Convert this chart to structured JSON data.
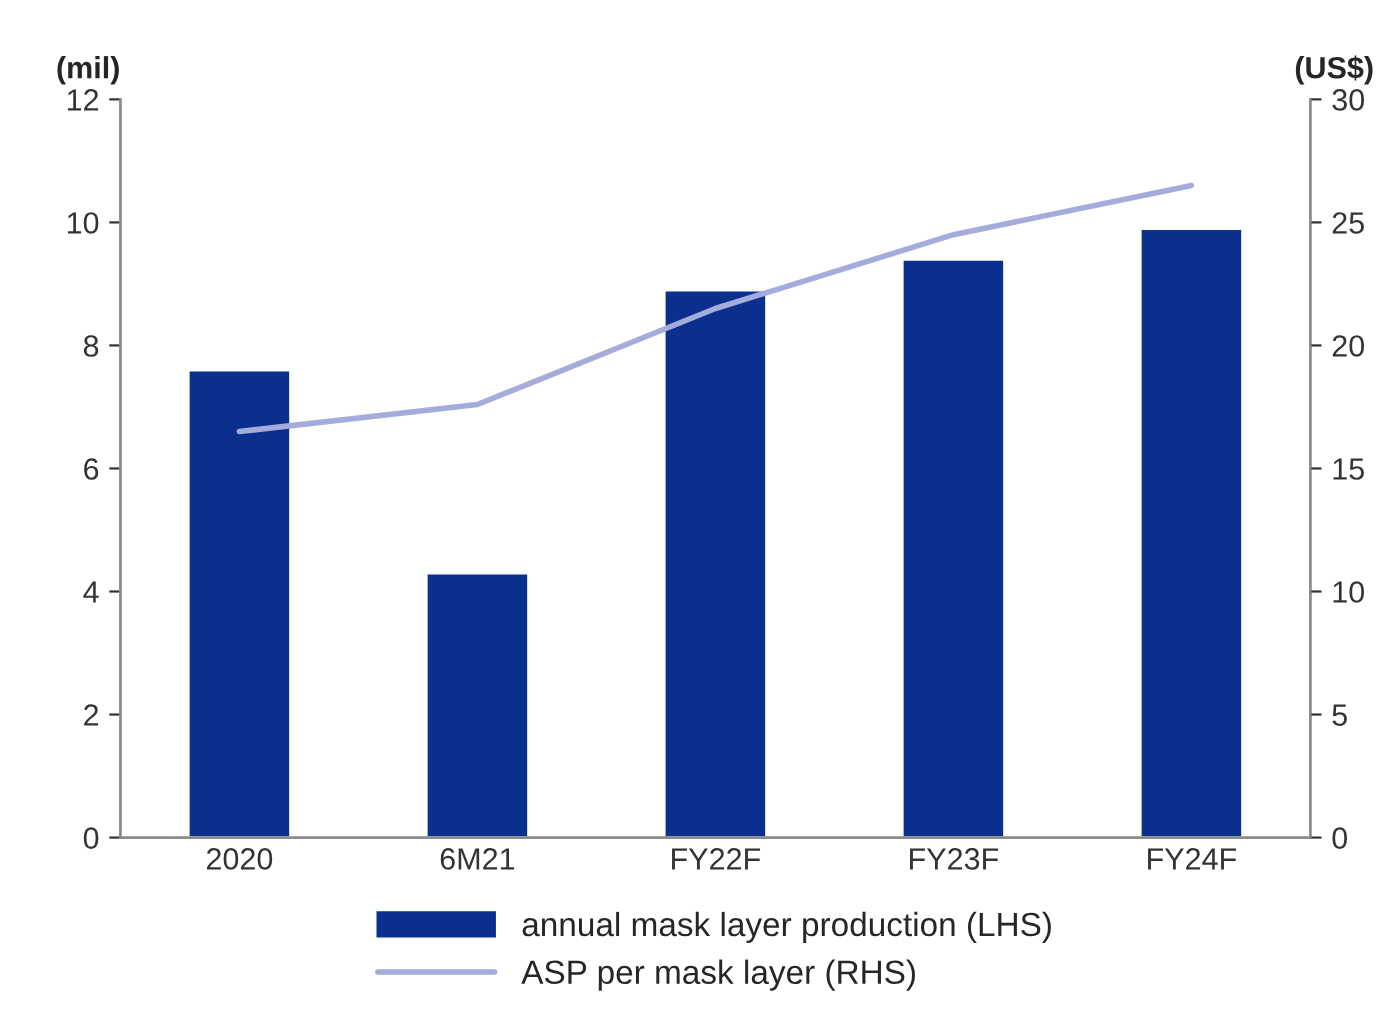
{
  "chart_data": {
    "type": "bar",
    "categories": [
      "2020",
      "6M21",
      "FY22F",
      "FY23F",
      "FY24F"
    ],
    "ylabel": "(mil)",
    "y2label": "(US$)",
    "series": [
      {
        "name": "annual mask layer production (LHS)",
        "color": "#0a2f8f",
        "values": [
          7.6,
          4.3,
          8.9,
          9.4,
          9.9
        ]
      },
      {
        "name": "ASP per mask layer (RHS)",
        "type": "line",
        "axis": "y2",
        "color": "#a3acdb",
        "values": [
          16.5,
          17.6,
          21.5,
          24.5,
          26.5
        ]
      }
    ],
    "ylim": [
      0,
      12
    ],
    "yticks": [
      0,
      2,
      4,
      6,
      8,
      10,
      12
    ],
    "y2lim": [
      0,
      30
    ],
    "y2ticks": [
      0,
      5,
      10,
      15,
      20,
      25,
      30
    ],
    "grid": false,
    "legend": "bottom"
  }
}
